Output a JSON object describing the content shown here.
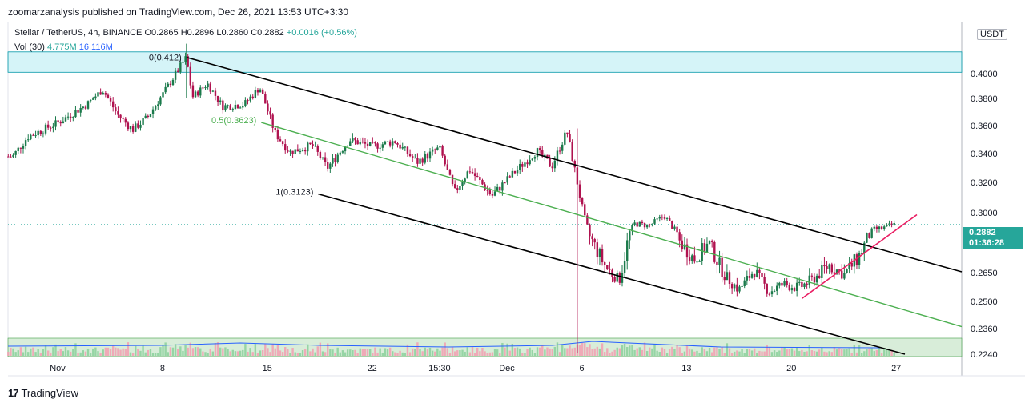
{
  "header": {
    "published": "zoomarzanalysis published on TradingView.com, Dec 26, 2021 13:53 UTC+3:30"
  },
  "legend": {
    "symbol": "Stellar / TetherUS, 4h, BINANCE",
    "open": "O0.2865",
    "high": "H0.2896",
    "low": "L0.2860",
    "close": "C0.2882",
    "change": "+0.0016 (+0.56%)",
    "vol_label": "Vol (30)",
    "vol_value": "4.775M",
    "vol_ma": "16.116M"
  },
  "price_badge": {
    "price": "0.2882",
    "countdown": "01:36:28"
  },
  "currency_badge": "USDT",
  "footer": {
    "brand": "TradingView",
    "logo": "17"
  },
  "colors": {
    "up": "#26a69a",
    "down": "#ef5350",
    "candle_up": "#1b7a4b",
    "candle_down": "#b0124f",
    "zone": "#b2ebf2",
    "midline": "#4caf50",
    "trendline": "#e91e63",
    "volume_ma": "#2962ff"
  },
  "chart_data": {
    "type": "candlestick",
    "symbol": "Stellar / TetherUS",
    "interval": "4h",
    "exchange": "BINANCE",
    "y_ticks": [
      0.224,
      0.236,
      0.25,
      0.265,
      0.28,
      0.3,
      0.32,
      0.34,
      0.36,
      0.38,
      0.4
    ],
    "y_tick_labels": [
      "0.2240",
      "0.2360",
      "0.2500",
      "0.2650",
      "0.2800",
      "0.3000",
      "0.3200",
      "0.3400",
      "0.3600",
      "0.3800",
      "0.4000"
    ],
    "x_ticks": [
      {
        "label": "Nov",
        "day": 0
      },
      {
        "label": "8",
        "day": 7
      },
      {
        "label": "15",
        "day": 14
      },
      {
        "label": "22",
        "day": 21
      },
      {
        "label": "15:30",
        "day": 25.5
      },
      {
        "label": "Dec",
        "day": 30
      },
      {
        "label": "6",
        "day": 35
      },
      {
        "label": "13",
        "day": 42
      },
      {
        "label": "20",
        "day": 49
      },
      {
        "label": "27",
        "day": 56
      }
    ],
    "last_price": 0.2882,
    "fib_levels": [
      {
        "label": "0(0.412)",
        "value": 0.412
      },
      {
        "label": "0.5(0.3623)",
        "value": 0.3623
      },
      {
        "label": "1(0.3123)",
        "value": 0.3123
      }
    ],
    "resistance_zone": [
      0.401,
      0.416
    ],
    "approx_close_path": [
      {
        "day": -3,
        "close": 0.338
      },
      {
        "day": -2,
        "close": 0.352
      },
      {
        "day": 0,
        "close": 0.362
      },
      {
        "day": 2,
        "close": 0.376
      },
      {
        "day": 3,
        "close": 0.387
      },
      {
        "day": 4,
        "close": 0.368
      },
      {
        "day": 5,
        "close": 0.357
      },
      {
        "day": 6,
        "close": 0.366
      },
      {
        "day": 7,
        "close": 0.383
      },
      {
        "day": 8,
        "close": 0.402
      },
      {
        "day": 8.6,
        "close": 0.412
      },
      {
        "day": 9,
        "close": 0.381
      },
      {
        "day": 10,
        "close": 0.392
      },
      {
        "day": 11,
        "close": 0.374
      },
      {
        "day": 12.5,
        "close": 0.376
      },
      {
        "day": 13.5,
        "close": 0.389
      },
      {
        "day": 14.5,
        "close": 0.355
      },
      {
        "day": 15.5,
        "close": 0.341
      },
      {
        "day": 17,
        "close": 0.346
      },
      {
        "day": 18,
        "close": 0.33
      },
      {
        "day": 19.5,
        "close": 0.35
      },
      {
        "day": 21,
        "close": 0.345
      },
      {
        "day": 22.5,
        "close": 0.349
      },
      {
        "day": 24,
        "close": 0.334
      },
      {
        "day": 25.5,
        "close": 0.344
      },
      {
        "day": 26.5,
        "close": 0.313
      },
      {
        "day": 27.5,
        "close": 0.329
      },
      {
        "day": 29,
        "close": 0.311
      },
      {
        "day": 30.5,
        "close": 0.327
      },
      {
        "day": 32,
        "close": 0.342
      },
      {
        "day": 33,
        "close": 0.331
      },
      {
        "day": 34,
        "close": 0.356
      },
      {
        "day": 34.6,
        "close": 0.325
      },
      {
        "day": 35.5,
        "close": 0.279
      },
      {
        "day": 36.5,
        "close": 0.268
      },
      {
        "day": 37.5,
        "close": 0.261
      },
      {
        "day": 38.5,
        "close": 0.289
      },
      {
        "day": 39.5,
        "close": 0.287
      },
      {
        "day": 40.5,
        "close": 0.297
      },
      {
        "day": 41.5,
        "close": 0.277
      },
      {
        "day": 42.5,
        "close": 0.27
      },
      {
        "day": 43.5,
        "close": 0.276
      },
      {
        "day": 44.5,
        "close": 0.264
      },
      {
        "day": 45.5,
        "close": 0.256
      },
      {
        "day": 46.5,
        "close": 0.266
      },
      {
        "day": 47.5,
        "close": 0.255
      },
      {
        "day": 48.5,
        "close": 0.259
      },
      {
        "day": 49.5,
        "close": 0.257
      },
      {
        "day": 50.5,
        "close": 0.262
      },
      {
        "day": 51.5,
        "close": 0.268
      },
      {
        "day": 52.5,
        "close": 0.264
      },
      {
        "day": 53.5,
        "close": 0.271
      },
      {
        "day": 54.5,
        "close": 0.283
      },
      {
        "day": 55.2,
        "close": 0.285
      },
      {
        "day": 55.8,
        "close": 0.288
      }
    ],
    "volume": {
      "label": "Vol (30)",
      "last": "4.775M",
      "ma": "16.116M"
    }
  }
}
